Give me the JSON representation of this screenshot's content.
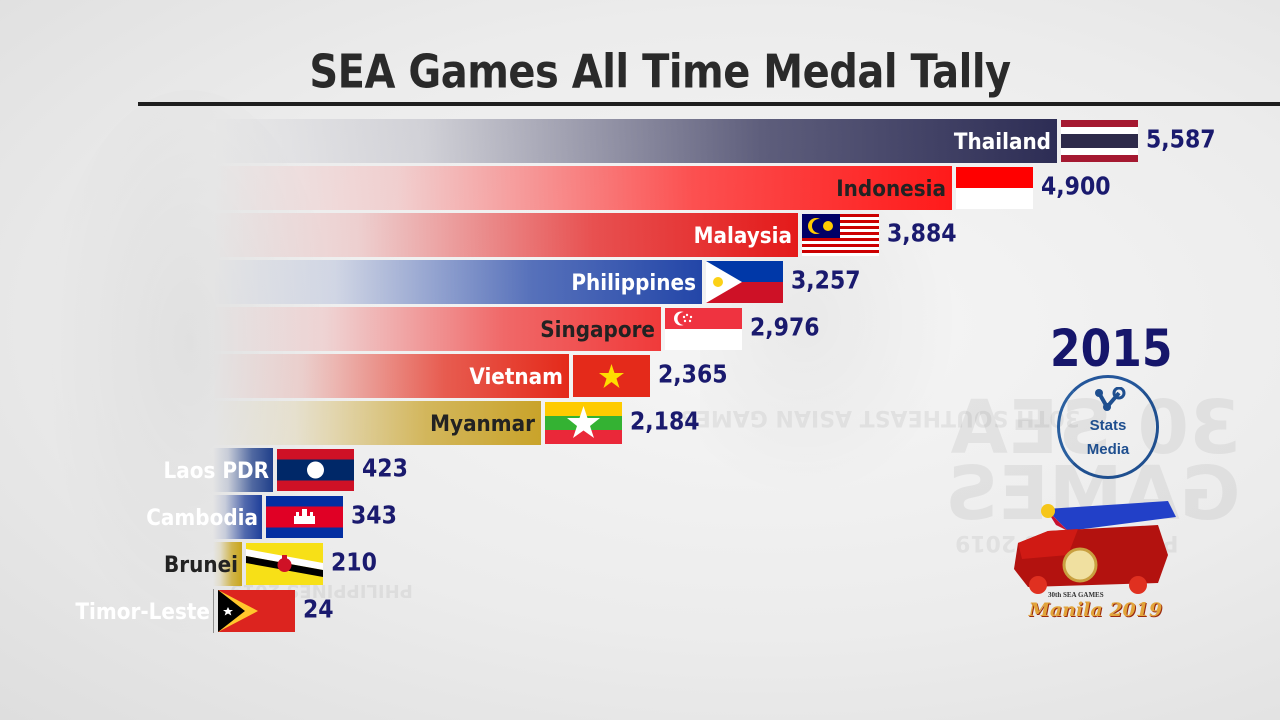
{
  "header": {
    "title": "SEA Games All Time Medal Tally"
  },
  "year_label": "2015",
  "branding": {
    "stats_media_line1": "Stats",
    "stats_media_line2": "Media",
    "event_logo_line1": "30th SEA GAMES",
    "event_logo_line2": "Manila 2019"
  },
  "watermarks": {
    "center_line": "30TH SOUTHEAST ASIAN GAMES",
    "right_big_1": "30 SEA",
    "right_big_2": "GAMES",
    "right_small": "PHILIPPINES 2019",
    "left_small": "PHILIPPINES 2019"
  },
  "colors": {
    "value_text": "#1a1a6e",
    "title_text": "#2a2a2a",
    "year_text": "#16166b"
  },
  "chart_data": {
    "type": "bar",
    "orientation": "horizontal",
    "title": "SEA Games All Time Medal Tally",
    "subtitle": "2015",
    "xlabel": "",
    "ylabel": "",
    "grid": false,
    "legend": "none",
    "categories": [
      "Thailand",
      "Indonesia",
      "Malaysia",
      "Philippines",
      "Singapore",
      "Vietnam",
      "Myanmar",
      "Laos PDR",
      "Cambodia",
      "Brunei",
      "Timor-Leste"
    ],
    "values": [
      5587,
      4900,
      3884,
      3257,
      2976,
      2365,
      2184,
      423,
      343,
      210,
      24
    ],
    "value_labels": [
      "5,587",
      "4,900",
      "3,884",
      "3,257",
      "2,976",
      "2,365",
      "2,184",
      "423",
      "343",
      "210",
      "24"
    ],
    "bar_colors": [
      "#2d2d55",
      "#ff1a1a",
      "#e41a1a",
      "#2346a8",
      "#f03a3a",
      "#e42a1a",
      "#c9a32a",
      "#1f3f8a",
      "#1f3f9a",
      "#c9a51a",
      "#333333"
    ]
  },
  "rows": [
    {
      "name": "Thailand",
      "value": "5,587",
      "bar_end": 1057,
      "flag": "thailand",
      "label_color": "#ffffff",
      "bar_color": "#2d2d55"
    },
    {
      "name": "Indonesia",
      "value": "4,900",
      "bar_end": 952,
      "flag": "indonesia",
      "label_color": "#222222",
      "bar_color": "#ff1a1a"
    },
    {
      "name": "Malaysia",
      "value": "3,884",
      "bar_end": 798,
      "flag": "malaysia",
      "label_color": "#ffffff",
      "bar_color": "#e41a1a"
    },
    {
      "name": "Philippines",
      "value": "3,257",
      "bar_end": 702,
      "flag": "philippines",
      "label_color": "#ffffff",
      "bar_color": "#2346a8"
    },
    {
      "name": "Singapore",
      "value": "2,976",
      "bar_end": 661,
      "flag": "singapore",
      "label_color": "#222222",
      "bar_color": "#f03a3a"
    },
    {
      "name": "Vietnam",
      "value": "2,365",
      "bar_end": 569,
      "flag": "vietnam",
      "label_color": "#ffffff",
      "bar_color": "#e42a1a"
    },
    {
      "name": "Myanmar",
      "value": "2,184",
      "bar_end": 541,
      "flag": "myanmar",
      "label_color": "#222222",
      "bar_color": "#c9a32a"
    },
    {
      "name": "Laos PDR",
      "value": "423",
      "bar_end": 273,
      "flag": "laos",
      "label_color": "#ffffff",
      "bar_color": "#1f3f8a"
    },
    {
      "name": "Cambodia",
      "value": "343",
      "bar_end": 262,
      "flag": "cambodia",
      "label_color": "#ffffff",
      "bar_color": "#1f3f9a"
    },
    {
      "name": "Brunei",
      "value": "210",
      "bar_end": 242,
      "flag": "brunei",
      "label_color": "#222222",
      "bar_color": "#c9a51a"
    },
    {
      "name": "Timor-Leste",
      "value": "24",
      "bar_end": 214,
      "flag": "timor",
      "label_color": "#ffffff",
      "bar_color": "#333333"
    }
  ]
}
